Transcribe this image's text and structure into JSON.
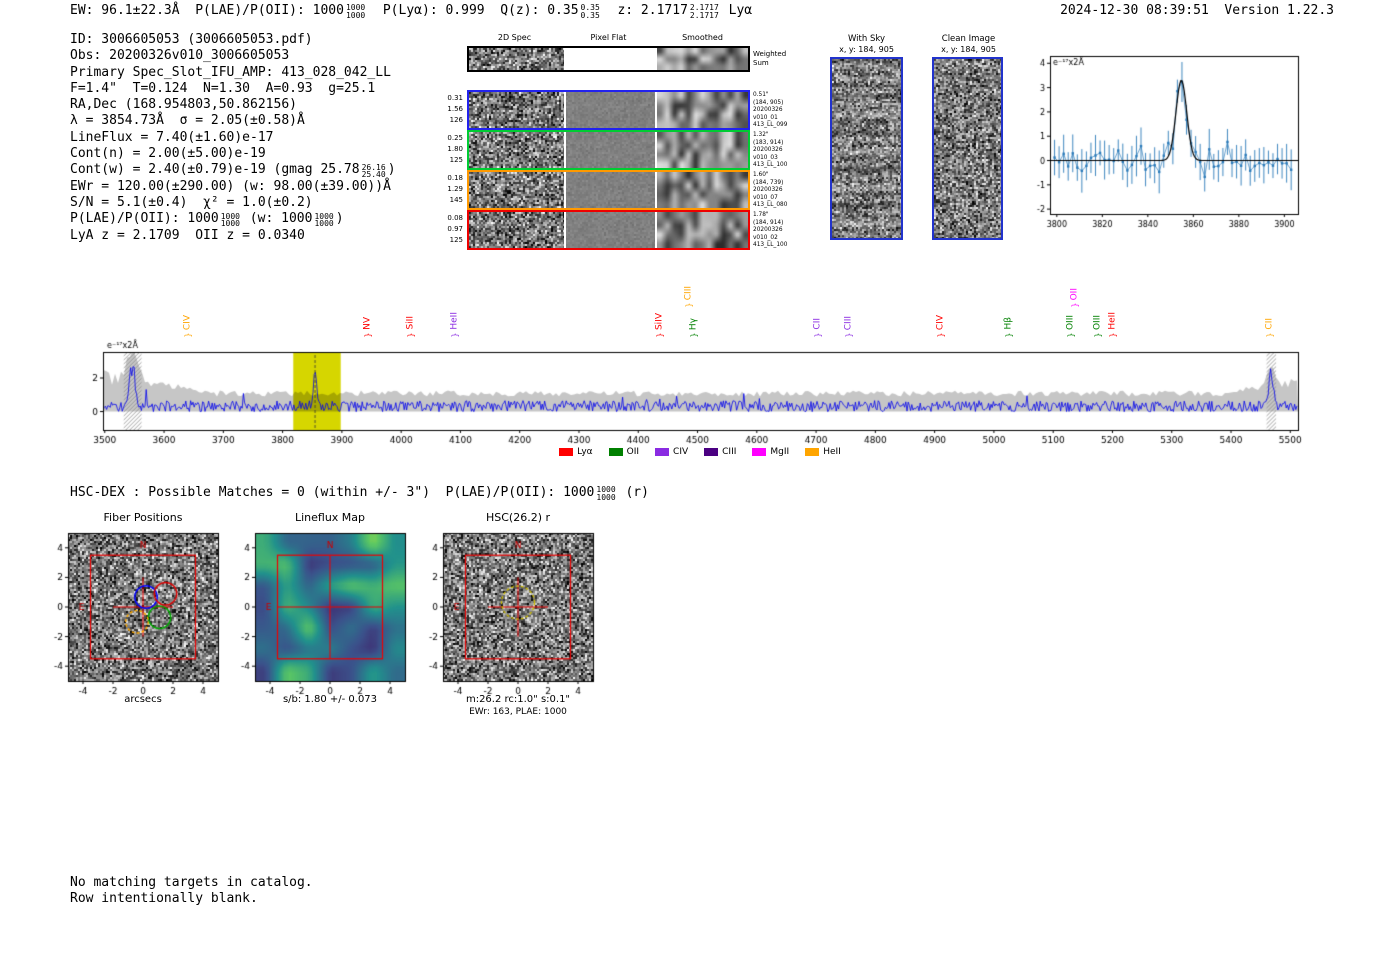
{
  "header": {
    "left_tokens": [
      "EW: 96.1±22.3Å  P(LAE)/P(OII): 1000",
      [
        "1000",
        "1000"
      ],
      "  P(Lyα): 0.999  Q(z): 0.35",
      [
        "0.35",
        "0.35"
      ],
      "  z: 2.1717",
      [
        "2.1717",
        "2.1717"
      ],
      " Lyα"
    ],
    "right": "2024-12-30 08:39:51  Version 1.22.3"
  },
  "info_lines": [
    [
      "ID: 3006605053 (3006605053.pdf)"
    ],
    [
      "Obs: 20200326v010_3006605053"
    ],
    [
      "Primary Spec_Slot_IFU_AMP: 413_028_042_LL"
    ],
    [
      "F=1.4\"  T=0.124  N=1.30  A=0.93  g=25.1"
    ],
    [
      "RA,Dec (168.954803,50.862156)"
    ],
    [
      "λ = 3854.73Å  σ = 2.05(±0.58)Å"
    ],
    [
      "LineFlux = 7.40(±1.60)e-17"
    ],
    [
      "Cont(n) = 2.00(±5.00)e-19"
    ],
    [
      "Cont(w) = 2.40(±0.79)e-19 (gmag 25.78",
      [
        "26.16",
        "25.40"
      ],
      ")"
    ],
    [
      "EWr = 120.00(±290.00) (w: 98.00(±39.00))Å"
    ],
    [
      "S/N = 5.1(±0.4)  χ² = 1.0(±0.2)"
    ],
    [
      "P(LAE)/P(OII): 1000",
      [
        "1000",
        "1000"
      ],
      " (w: 1000",
      [
        "1000",
        "1000"
      ],
      ")"
    ],
    [
      "LyA z = 2.1709  OII z = 0.0340"
    ]
  ],
  "spec2d": {
    "col_headers": [
      "2D Spec",
      "Pixel Flat",
      "Smoothed"
    ],
    "rows": [
      {
        "border": "#000000",
        "left": [],
        "right": [
          "Weighted",
          "Sum"
        ]
      },
      {
        "border": "#2222ee",
        "left": [
          "0.31",
          "1.56",
          "126"
        ],
        "right": [
          "0.51\"",
          "(184, 905)",
          "20200326",
          "v010_01",
          "413_LL_099"
        ]
      },
      {
        "border": "#00cc33",
        "left": [
          "0.25",
          "1.80",
          "125"
        ],
        "right": [
          "1.32\"",
          "(183, 914)",
          "20200326",
          "v010_03",
          "413_LL_100"
        ]
      },
      {
        "border": "#ff9900",
        "left": [
          "0.18",
          "1.29",
          "145"
        ],
        "right": [
          "1.60\"",
          "(184, 739)",
          "20200326",
          "v010_07",
          "413_LL_080"
        ]
      },
      {
        "border": "#ee0000",
        "left": [
          "0.08",
          "0.97",
          "125"
        ],
        "right": [
          "1.78\"",
          "(184, 914)",
          "20200326",
          "v010_02",
          "413_LL_100"
        ]
      }
    ]
  },
  "with_sky": {
    "title": "With Sky",
    "coords": "x, y: 184, 905"
  },
  "clean_image": {
    "title": "Clean Image",
    "coords": "x, y: 184, 905"
  },
  "hsc_line_tokens": [
    "HSC-DEX : Possible Matches = 0 (within +/- 3\")  P(LAE)/P(OII): 1000",
    [
      "1000",
      "1000"
    ],
    " (r)"
  ],
  "footer_lines": [
    "No matching targets in catalog.",
    "Row intentionally blank."
  ],
  "chart_data": [
    {
      "id": "line_fit",
      "type": "scatter",
      "ylabel": "e⁻¹⁷x2Å",
      "xlim": [
        3797,
        3906
      ],
      "ylim": [
        -2.2,
        4.3
      ],
      "xticks": [
        3800,
        3820,
        3840,
        3860,
        3880,
        3900
      ],
      "yticks": [
        -2,
        -1,
        0,
        1,
        2,
        3,
        4
      ],
      "fit": {
        "center": 3854.73,
        "sigma": 2.05,
        "amplitude": 3.3
      },
      "point_color": "#2a7ab9",
      "fit_color": "#000000",
      "point_step": 2,
      "noise_sigma": 0.42,
      "errbar": [
        0.45,
        0.9
      ]
    },
    {
      "id": "full_spectrum",
      "type": "line",
      "ylabel": "e⁻¹⁷x2Å",
      "xlim": [
        3497,
        5513
      ],
      "ylim": [
        -1.1,
        3.55
      ],
      "xticks": [
        3500,
        3600,
        3700,
        3800,
        3900,
        4000,
        4100,
        4200,
        4300,
        4400,
        4500,
        4600,
        4700,
        4800,
        4900,
        5000,
        5100,
        5200,
        5300,
        5400,
        5500
      ],
      "yticks": [
        0,
        2
      ],
      "line_color": "#0000ee",
      "noise_color": "#c6c6c6",
      "highlight_band": {
        "x0": 3818,
        "x1": 3898,
        "color": "#d6d600"
      },
      "peak": {
        "center": 3854.73,
        "amplitude": 2.25,
        "sigma": 2.5
      },
      "extra_peaks": [
        {
          "center": 3547,
          "amplitude": 2.3,
          "sigma": 5
        },
        {
          "center": 5468,
          "amplitude": 2.0,
          "sigma": 4
        }
      ],
      "hatch_bands": [
        [
          3532,
          3562
        ],
        [
          5460,
          5476
        ]
      ],
      "line_markers": [
        {
          "label": "CIV",
          "wave": 3640,
          "color": "#ffa500",
          "tier": 1
        },
        {
          "label": "NV",
          "wave": 3944,
          "color": "#ff0000",
          "tier": 1
        },
        {
          "label": "SiII",
          "wave": 4016,
          "color": "#ff0000",
          "tier": 1
        },
        {
          "label": "HeII",
          "wave": 4090,
          "color": "#8a2be2",
          "tier": 1
        },
        {
          "label": "SiIV",
          "wave": 4437,
          "color": "#ff0000",
          "tier": 1
        },
        {
          "label": "CIII",
          "wave": 4486,
          "color": "#ffa500",
          "tier": 2
        },
        {
          "label": "Hγ",
          "wave": 4494,
          "color": "#008000",
          "tier": 1
        },
        {
          "label": "CII",
          "wave": 4703,
          "color": "#8a2be2",
          "tier": 1
        },
        {
          "label": "CIII",
          "wave": 4755,
          "color": "#8a2be2",
          "tier": 1
        },
        {
          "label": "CIV",
          "wave": 4911,
          "color": "#ff0000",
          "tier": 1
        },
        {
          "label": "Hβ",
          "wave": 5025,
          "color": "#008000",
          "tier": 1
        },
        {
          "label": "OIII",
          "wave": 5130,
          "color": "#008000",
          "tier": 1
        },
        {
          "label": "OII",
          "wave": 5136,
          "color": "#ff00ff",
          "tier": 2
        },
        {
          "label": "OIII",
          "wave": 5176,
          "color": "#008000",
          "tier": 1
        },
        {
          "label": "HeII",
          "wave": 5201,
          "color": "#ff0000",
          "tier": 1
        },
        {
          "label": "CII",
          "wave": 5466,
          "color": "#ffa500",
          "tier": 1
        }
      ],
      "legend": [
        {
          "label": "Lyα",
          "color": "#ff0000"
        },
        {
          "label": "OII",
          "color": "#008000"
        },
        {
          "label": "CIV",
          "color": "#8a2be2"
        },
        {
          "label": "CIII",
          "color": "#4b0082"
        },
        {
          "label": "MgII",
          "color": "#ff00ff"
        },
        {
          "label": "HeII",
          "color": "#ffa500"
        }
      ]
    },
    {
      "id": "fiber_positions",
      "type": "heatmap",
      "title": "Fiber Positions",
      "xlabel": "arcsecs",
      "ticks": [
        -4,
        -2,
        0,
        2,
        4
      ],
      "range": [
        -5,
        5
      ],
      "box_halfwidth": 3.5,
      "compass": {
        "north": "N",
        "east": "E",
        "color": "#cc0000"
      },
      "crosshair_color": "#ee0000",
      "fibers": [
        {
          "x": 0.2,
          "y": 0.68,
          "r": 0.75,
          "color": "#0000ff",
          "dashed": false
        },
        {
          "x": 1.5,
          "y": 0.9,
          "r": 0.75,
          "color": "#dd0000",
          "dashed": false
        },
        {
          "x": 1.1,
          "y": -0.7,
          "r": 0.75,
          "color": "#00aa00",
          "dashed": false
        },
        {
          "x": -0.4,
          "y": -1.0,
          "r": 0.75,
          "color": "#ffaa00",
          "dashed": true
        }
      ]
    },
    {
      "id": "lineflux_map",
      "type": "heatmap",
      "title": "Lineflux Map",
      "xlabel": "s/b: 1.80 +/- 0.073",
      "ticks": [
        -4,
        -2,
        0,
        2,
        4
      ],
      "range": [
        -5,
        5
      ],
      "box_halfwidth": 3.5,
      "colormap": "viridis",
      "compass": {
        "north": "N",
        "east": "E",
        "color": "#cc0000"
      },
      "crosshair_color": "#ee0000"
    },
    {
      "id": "hsc_cutout",
      "type": "heatmap",
      "title": "HSC(26.2) r",
      "xlabel": "m:26.2 rc:1.0\"  s:0.1\"",
      "xlabel2": "EWr: 163, PLAE: 1000",
      "ticks": [
        -4,
        -2,
        0,
        2,
        4
      ],
      "range": [
        -5,
        5
      ],
      "box_halfwidth": 3.5,
      "compass": {
        "north": "N",
        "east": "E",
        "color": "#cc0000"
      },
      "crosshair_color": "#ee0000",
      "aperture": {
        "x": 0,
        "y": 0.3,
        "r": 1.1,
        "color": "#ccbb00",
        "dashed": true
      }
    }
  ]
}
